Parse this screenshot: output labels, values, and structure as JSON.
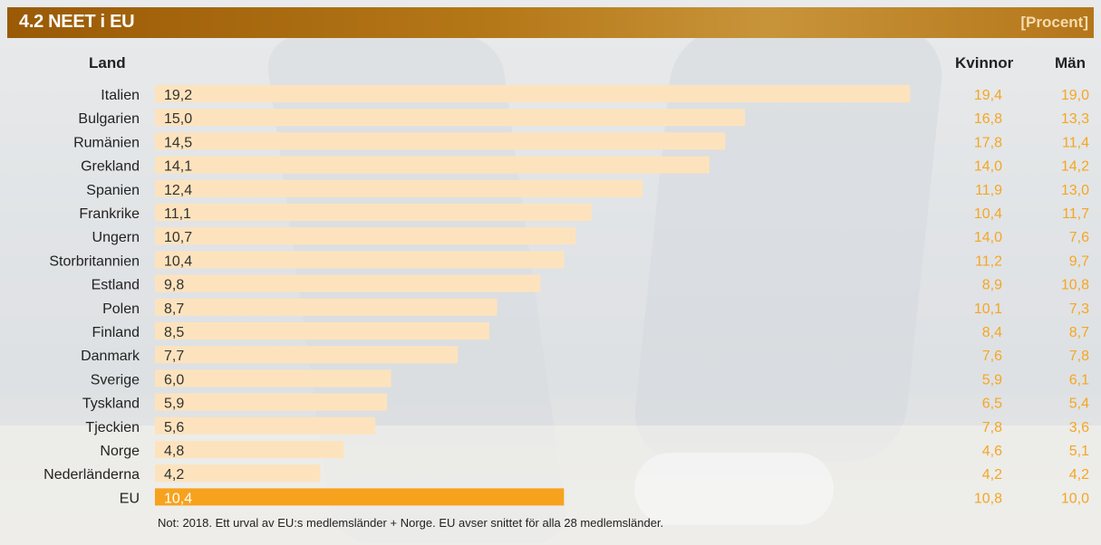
{
  "header": {
    "title": "4.2  NEET i EU",
    "unit": "[Procent]"
  },
  "columns": {
    "land": "Land",
    "kvinnor": "Kvinnor",
    "man": "Män"
  },
  "note": "Not: 2018. Ett urval av EU:s medlemsländer + Norge. EU avser snittet för alla 28 medlemsländer.",
  "colors": {
    "bar": "#fde3bd",
    "bar_highlight": "#f7a21d",
    "side_values": "#f5a623",
    "header": "#a8650e"
  },
  "chart_data": {
    "type": "bar",
    "orientation": "horizontal",
    "title": "4.2  NEET i EU",
    "ylabel": "Land",
    "unit": "[Procent]",
    "xlim": [
      0,
      20
    ],
    "categories": [
      "Italien",
      "Bulgarien",
      "Rumänien",
      "Grekland",
      "Spanien",
      "Frankrike",
      "Ungern",
      "Storbritannien",
      "Estland",
      "Polen",
      "Finland",
      "Danmark",
      "Sverige",
      "Tyskland",
      "Tjeckien",
      "Norge",
      "Nederländerna",
      "EU"
    ],
    "values": [
      19.2,
      15.0,
      14.5,
      14.1,
      12.4,
      11.1,
      10.7,
      10.4,
      9.8,
      8.7,
      8.5,
      7.7,
      6.0,
      5.9,
      5.6,
      4.8,
      4.2,
      10.4
    ],
    "value_labels": [
      "19,2",
      "15,0",
      "14,5",
      "14,1",
      "12,4",
      "11,1",
      "10,7",
      "10,4",
      "9,8",
      "8,7",
      "8,5",
      "7,7",
      "6,0",
      "5,9",
      "5,6",
      "4,8",
      "4,2",
      "10,4"
    ],
    "highlight": "EU",
    "side_columns": [
      {
        "name": "Kvinnor",
        "values": [
          "19,4",
          "16,8",
          "17,8",
          "14,0",
          "11,9",
          "10,4",
          "14,0",
          "11,2",
          "8,9",
          "10,1",
          "8,4",
          "7,6",
          "5,9",
          "6,5",
          "7,8",
          "4,6",
          "4,2",
          "10,8"
        ]
      },
      {
        "name": "Män",
        "values": [
          "19,0",
          "13,3",
          "11,4",
          "14,2",
          "13,0",
          "11,7",
          "7,6",
          "9,7",
          "10,8",
          "7,3",
          "8,7",
          "7,8",
          "6,1",
          "5,4",
          "3,6",
          "5,1",
          "4,2",
          "10,0"
        ]
      }
    ]
  }
}
